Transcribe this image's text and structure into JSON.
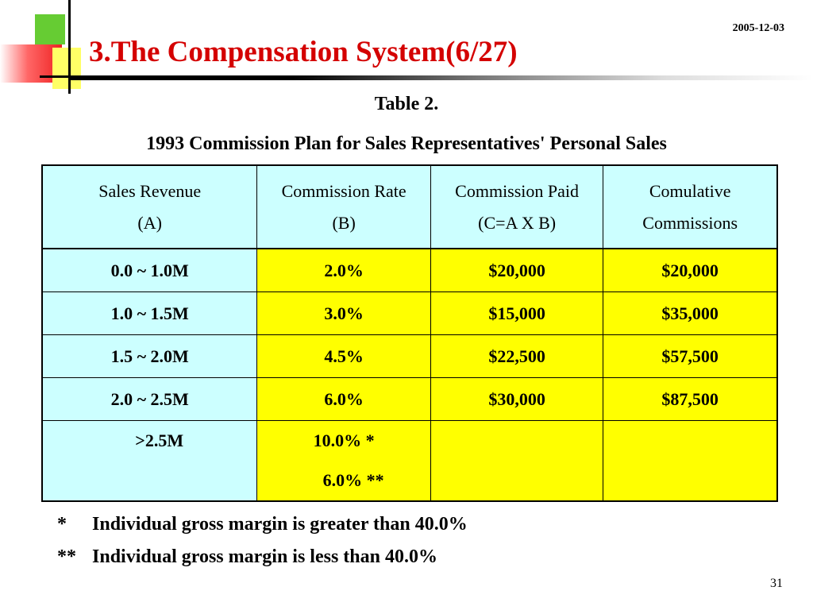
{
  "slide": {
    "title": "3.The Compensation System(6/27)",
    "date": "2005-12-03",
    "page_number": "31",
    "colors": {
      "title": "#d40000",
      "header_bg": "#ccffff",
      "revenue_bg": "#ccffff",
      "value_bg": "#ffff00"
    }
  },
  "table": {
    "caption": "Table 2.",
    "subtitle": "1993 Commission Plan for Sales Representatives' Personal Sales",
    "headers": [
      {
        "line1": "Sales Revenue",
        "line2": "(A)"
      },
      {
        "line1": "Commission Rate",
        "line2": "(B)"
      },
      {
        "line1": "Commission Paid",
        "line2": "(C=A X B)"
      },
      {
        "line1": "Comulative",
        "line2": "Commissions"
      }
    ],
    "rows": [
      {
        "revenue": "0.0 ~ 1.0M",
        "rate": "2.0%",
        "paid": "$20,000",
        "cumulative": "$20,000"
      },
      {
        "revenue": "1.0 ~ 1.5M",
        "rate": "3.0%",
        "paid": "$15,000",
        "cumulative": "$35,000"
      },
      {
        "revenue": "1.5 ~ 2.0M",
        "rate": "4.5%",
        "paid": "$22,500",
        "cumulative": "$57,500"
      },
      {
        "revenue": "2.0 ~ 2.5M",
        "rate": "6.0%",
        "paid": "$30,000",
        "cumulative": "$87,500"
      }
    ],
    "last_row": {
      "revenue": ">2.5M",
      "rate_line1": "10.0%  *",
      "rate_line2": "6.0% **",
      "paid": "",
      "cumulative": ""
    }
  },
  "notes": [
    {
      "mark": "*",
      "text": "Individual gross margin is greater than 40.0%"
    },
    {
      "mark": "**",
      "text": "Individual gross margin is less than 40.0%"
    }
  ]
}
